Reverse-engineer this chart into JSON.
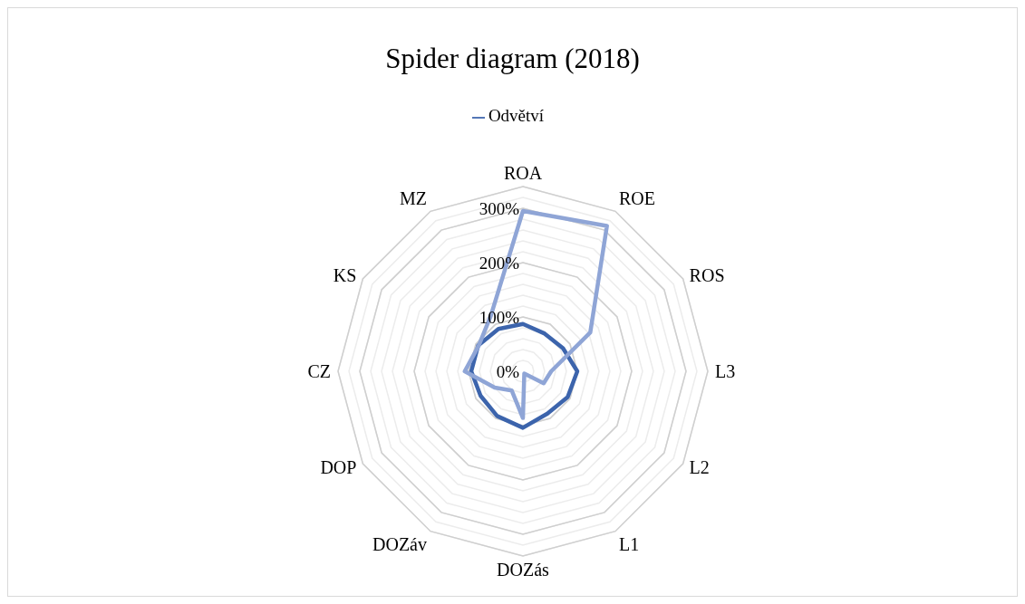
{
  "chart_data": {
    "type": "radar",
    "title": "Spider diagram (2018)",
    "categories": [
      "ROA",
      "ROE",
      "ROS",
      "L3",
      "L2",
      "L1",
      "DOZás",
      "DOZáv",
      "DOP",
      "CZ",
      "KS",
      "MZ"
    ],
    "series": [
      {
        "name": "Odvětví",
        "color": "#3c64ac",
        "values": [
          87,
          80,
          85,
          100,
          95,
          90,
          104,
          95,
          90,
          95,
          95,
          90
        ]
      },
      {
        "color": "#8fa5d6",
        "values": [
          295,
          309,
          143,
          52,
          44,
          5,
          86,
          41,
          60,
          107,
          94,
          118
        ]
      }
    ],
    "ylim": [
      0,
      340
    ],
    "yticks": [
      {
        "value": 0,
        "label": "0%"
      },
      {
        "value": 100,
        "label": "100%"
      },
      {
        "value": 200,
        "label": "200%"
      },
      {
        "value": 300,
        "label": "300%"
      }
    ],
    "grid": true,
    "legend": "top"
  }
}
